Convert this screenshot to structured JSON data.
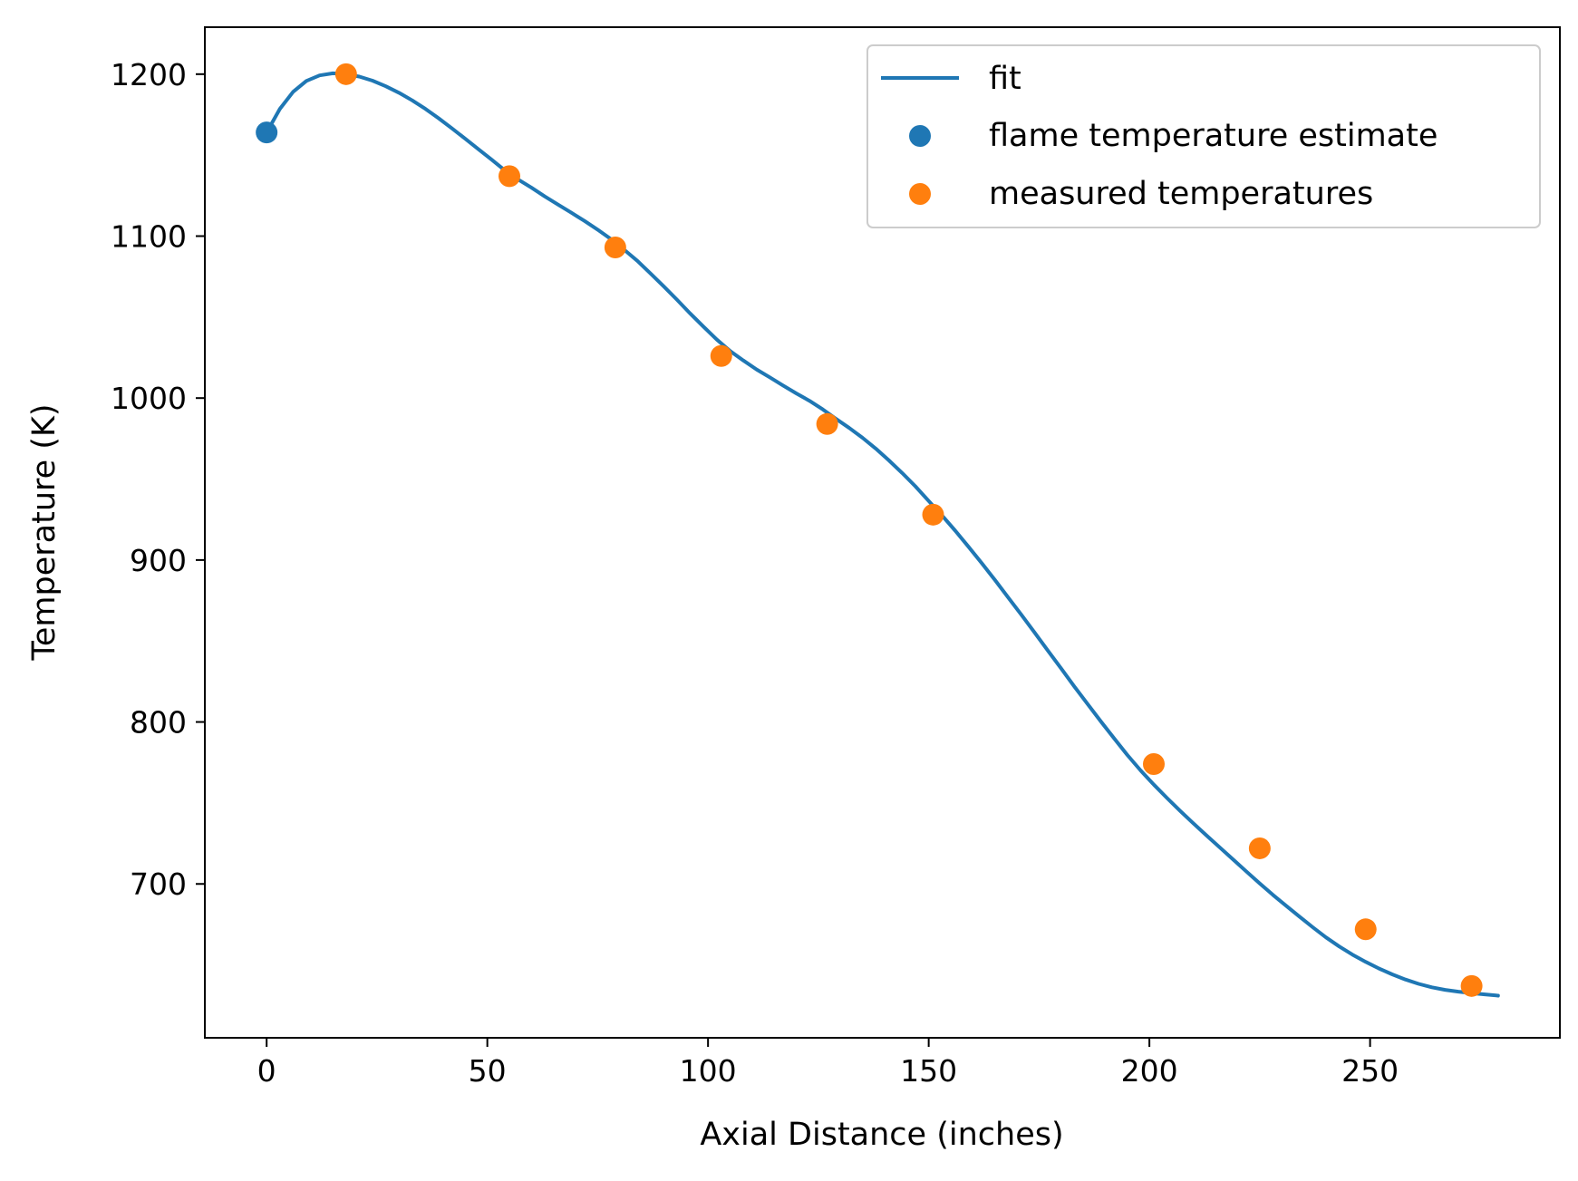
{
  "chart_data": {
    "type": "line",
    "xlabel": "Axial Distance (inches)",
    "ylabel": "Temperature (K)",
    "xlim": [
      -14,
      293
    ],
    "ylim": [
      605,
      1229
    ],
    "xticks": [
      0,
      50,
      100,
      150,
      200,
      250
    ],
    "yticks": [
      700,
      800,
      900,
      1000,
      1100,
      1200
    ],
    "grid": false,
    "legend_position": "top-right",
    "series": [
      {
        "name": "fit",
        "kind": "line",
        "color": "#1f77b4",
        "x": [
          0,
          3,
          6,
          9,
          12,
          15,
          18,
          21,
          24,
          27,
          30,
          33,
          36,
          39,
          42,
          45,
          48,
          51,
          54,
          57,
          60,
          63,
          66,
          69,
          72,
          75,
          78,
          81,
          84,
          87,
          90,
          93,
          96,
          99,
          102,
          105,
          108,
          111,
          114,
          117,
          120,
          123,
          126,
          129,
          132,
          135,
          138,
          141,
          144,
          147,
          150,
          153,
          156,
          159,
          162,
          165,
          168,
          171,
          174,
          177,
          180,
          183,
          186,
          189,
          192,
          195,
          198,
          201,
          204,
          207,
          210,
          213,
          216,
          219,
          222,
          225,
          228,
          231,
          234,
          237,
          240,
          243,
          246,
          249,
          252,
          255,
          258,
          261,
          264,
          267,
          270,
          273,
          276,
          279
        ],
        "y": [
          1164.0,
          1178.6,
          1189.1,
          1195.8,
          1199.2,
          1200.5,
          1200.0,
          1198.5,
          1196.0,
          1192.5,
          1188.5,
          1183.8,
          1178.5,
          1172.7,
          1166.5,
          1160.1,
          1153.6,
          1147.2,
          1140.5,
          1134.9,
          1129.9,
          1124.5,
          1119.5,
          1114.5,
          1109.4,
          1104.0,
          1098.2,
          1091.6,
          1084.7,
          1076.9,
          1068.9,
          1060.6,
          1052.1,
          1044.0,
          1036.1,
          1029.1,
          1023.2,
          1017.7,
          1012.8,
          1007.8,
          1002.9,
          998.3,
          993.0,
          987.2,
          981.5,
          975.5,
          968.8,
          961.5,
          953.7,
          945.5,
          936.5,
          927.6,
          918.1,
          908.2,
          898.1,
          887.7,
          876.9,
          866.2,
          855.2,
          844.1,
          833.1,
          821.9,
          811.1,
          800.3,
          789.9,
          779.6,
          770.1,
          761.3,
          753.0,
          745.0,
          737.3,
          729.8,
          722.4,
          715.0,
          707.6,
          700.3,
          693.2,
          686.5,
          679.8,
          673.3,
          667.0,
          661.4,
          656.4,
          651.9,
          647.8,
          644.2,
          641.0,
          638.3,
          636.2,
          634.6,
          633.5,
          632.6,
          631.8,
          631.0
        ]
      },
      {
        "name": "flame temperature estimate",
        "kind": "scatter",
        "color": "#1f77b4",
        "x": [
          0
        ],
        "y": [
          1164
        ]
      },
      {
        "name": "measured temperatures",
        "kind": "scatter",
        "color": "#ff7f0e",
        "x": [
          18,
          55,
          79,
          103,
          127,
          151,
          201,
          225,
          249,
          273
        ],
        "y": [
          1200,
          1137,
          1093,
          1026,
          984,
          928,
          774,
          722,
          672,
          637
        ]
      }
    ]
  }
}
